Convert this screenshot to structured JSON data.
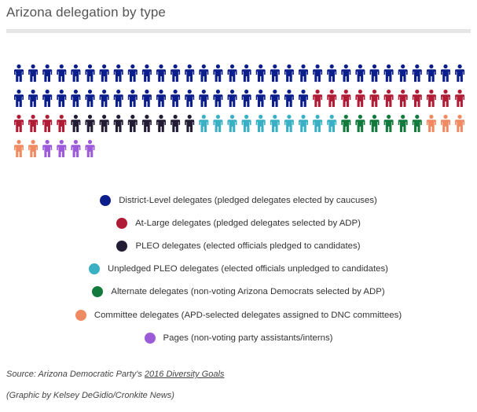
{
  "title": "Arizona delegation by type",
  "chart_data": {
    "type": "pictogram",
    "title": "Arizona delegation by type",
    "series": [
      {
        "name": "District-Level delegates (pledged delegates elected by caucuses)",
        "color": "#0c1d8c",
        "value": 53
      },
      {
        "name": "At-Large delegates (pledged delegates selected by ADP)",
        "color": "#b01c35",
        "value": 15
      },
      {
        "name": "PLEO delegates (elected officials pledged to candidates)",
        "color": "#221d35",
        "value": 9
      },
      {
        "name": "Unpledged PLEO delegates (elected officials unpledged to candidates)",
        "color": "#3ab0c4",
        "value": 10
      },
      {
        "name": "Alternate delegates (non-voting Arizona Democrats selected by ADP)",
        "color": "#127a3c",
        "value": 6
      },
      {
        "name": "Committee delegates (APD-selected delegates assigned to DNC committees)",
        "color": "#f08a62",
        "value": 5
      },
      {
        "name": "Pages (non-voting party assistants/interns)",
        "color": "#9c5bd8",
        "value": 4
      }
    ],
    "icon": "person-icon",
    "icons_per_row": 32,
    "legend_position": "bottom-center"
  },
  "source": {
    "prefix": "Source: Arizona Democratic Party's ",
    "link_text": "2016 Diversity Goals"
  },
  "credit": "(Graphic by Kelsey DeGidio/Cronkite News)"
}
